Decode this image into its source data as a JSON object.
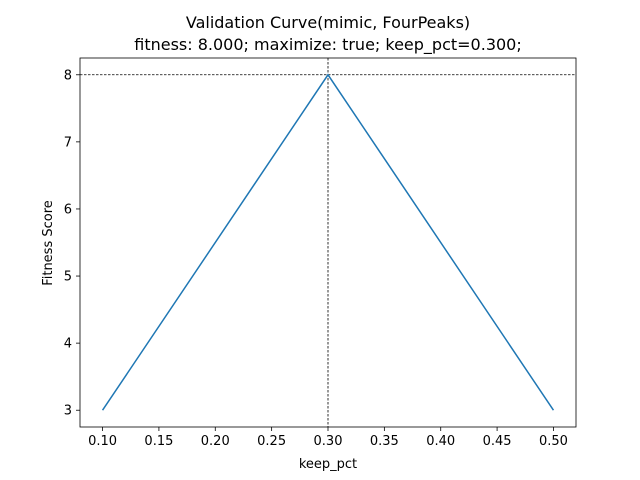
{
  "chart_data": {
    "type": "line",
    "title": "Validation Curve(mimic, FourPeaks)",
    "subtitle": "fitness: 8.000; maximize: true; keep_pct=0.300;",
    "xlabel": "keep_pct",
    "ylabel": "Fitness Score",
    "x": [
      0.1,
      0.3,
      0.5
    ],
    "series": [
      {
        "values": [
          3,
          8,
          3
        ],
        "color": "#1f77b4"
      }
    ],
    "xlim": [
      0.08,
      0.52
    ],
    "ylim": [
      2.75,
      8.25
    ],
    "xticks": [
      {
        "value": 0.1,
        "label": "0.10"
      },
      {
        "value": 0.15,
        "label": "0.15"
      },
      {
        "value": 0.2,
        "label": "0.20"
      },
      {
        "value": 0.25,
        "label": "0.25"
      },
      {
        "value": 0.3,
        "label": "0.30"
      },
      {
        "value": 0.35,
        "label": "0.35"
      },
      {
        "value": 0.4,
        "label": "0.40"
      },
      {
        "value": 0.45,
        "label": "0.45"
      },
      {
        "value": 0.5,
        "label": "0.50"
      }
    ],
    "yticks": [
      {
        "value": 3,
        "label": "3"
      },
      {
        "value": 4,
        "label": "4"
      },
      {
        "value": 5,
        "label": "5"
      },
      {
        "value": 6,
        "label": "6"
      },
      {
        "value": 7,
        "label": "7"
      },
      {
        "value": 8,
        "label": "8"
      }
    ],
    "reference_lines": {
      "x": 0.3,
      "y": 8,
      "style": "dashed",
      "color": "#000000"
    },
    "grid": false,
    "legend": "none"
  }
}
